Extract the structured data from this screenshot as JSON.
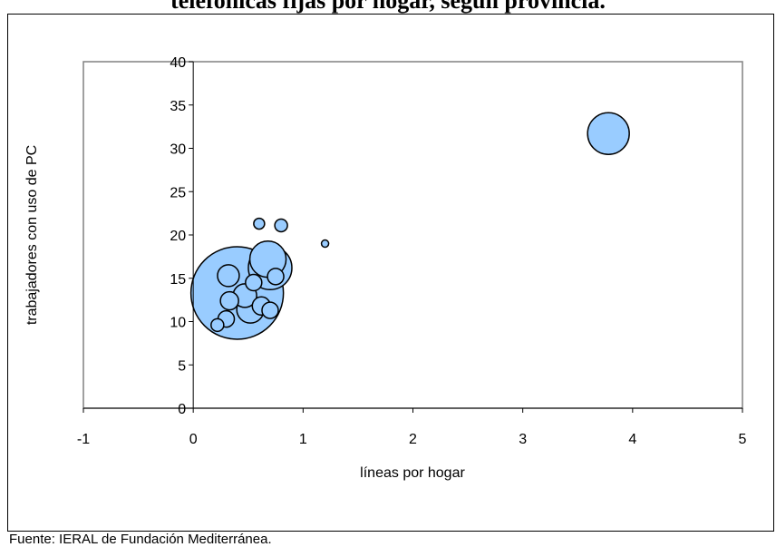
{
  "chart_data": {
    "type": "scatter",
    "title": "telefónicas fijas por hogar, según provincia.",
    "xlabel": "líneas por hogar",
    "ylabel": "trabajadores con uso de PC",
    "xlim": [
      -1,
      5
    ],
    "ylim": [
      0,
      40
    ],
    "x_ticks": [
      "-1",
      "0",
      "1",
      "2",
      "3",
      "4",
      "5"
    ],
    "y_ticks": [
      "0",
      "5",
      "10",
      "15",
      "20",
      "25",
      "30",
      "35",
      "40"
    ],
    "grid": false,
    "legend": "none",
    "colors": {
      "bubble_fill": "#99CCFF",
      "bubble_stroke": "#000000"
    },
    "points": [
      {
        "x": 0.4,
        "y": 13.3,
        "size": 51
      },
      {
        "x": 3.78,
        "y": 31.7,
        "size": 23
      },
      {
        "x": 0.7,
        "y": 16.2,
        "size": 24
      },
      {
        "x": 0.68,
        "y": 17.2,
        "size": 20
      },
      {
        "x": 0.75,
        "y": 15.2,
        "size": 9
      },
      {
        "x": 0.52,
        "y": 11.4,
        "size": 15
      },
      {
        "x": 0.47,
        "y": 13.0,
        "size": 13
      },
      {
        "x": 0.32,
        "y": 15.3,
        "size": 12
      },
      {
        "x": 0.33,
        "y": 12.4,
        "size": 10
      },
      {
        "x": 0.3,
        "y": 10.3,
        "size": 9
      },
      {
        "x": 0.22,
        "y": 9.6,
        "size": 7
      },
      {
        "x": 0.62,
        "y": 11.8,
        "size": 10
      },
      {
        "x": 0.7,
        "y": 11.3,
        "size": 9
      },
      {
        "x": 0.55,
        "y": 14.5,
        "size": 9
      },
      {
        "x": 0.6,
        "y": 21.3,
        "size": 6
      },
      {
        "x": 0.8,
        "y": 21.1,
        "size": 7
      },
      {
        "x": 1.2,
        "y": 19.0,
        "size": 4
      }
    ]
  },
  "source_note": "Fuente: IERAL de Fundación Mediterránea."
}
